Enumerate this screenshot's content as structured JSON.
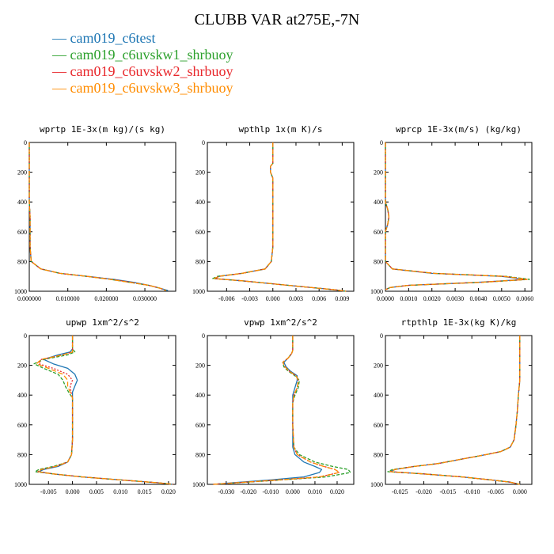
{
  "title": "CLUBB VAR at275E,-7N",
  "legend": [
    {
      "name": "cam019_c6test",
      "color": "#1f77b4",
      "dash": ""
    },
    {
      "name": "cam019_c6uvskw1_shrbuoy",
      "color": "#2ca02c",
      "dash": "4,2"
    },
    {
      "name": "cam019_c6uvskw2_shrbuoy",
      "color": "#e8262a",
      "dash": "2,2"
    },
    {
      "name": "cam019_c6uvskw3_shrbuoy",
      "color": "#ff8c00",
      "dash": "6,3"
    }
  ],
  "chart_data": [
    {
      "type": "line",
      "title": "wprtp  1E-3x(m kg)/(s kg)",
      "xlim": [
        0,
        0.038
      ],
      "ylim": [
        0,
        1000
      ],
      "y_inverted": true,
      "xticks": [
        0.0,
        0.01,
        0.02,
        0.03
      ],
      "xtick_labels": [
        "0.000000",
        "0.010000",
        "0.020000",
        "0.030000"
      ],
      "yticks": [
        0,
        200,
        400,
        600,
        800,
        1000
      ],
      "ytick_labels": [
        "0",
        "200",
        "400",
        "600",
        "800",
        "1000"
      ],
      "y": [
        0,
        100,
        200,
        300,
        400,
        500,
        600,
        700,
        800,
        850,
        880,
        900,
        920,
        940,
        960,
        980,
        995
      ],
      "series": [
        {
          "name": "cam019_c6test",
          "values": [
            0,
            0,
            0,
            0,
            0,
            0.0002,
            0.0002,
            0.0002,
            0.0005,
            0.003,
            0.008,
            0.015,
            0.022,
            0.027,
            0.031,
            0.034,
            0.036
          ]
        },
        {
          "name": "cam019_c6uvskw1_shrbuoy",
          "values": [
            0,
            0,
            0,
            0,
            0,
            0.0002,
            0.0002,
            0.0002,
            0.0005,
            0.003,
            0.008,
            0.015,
            0.021,
            0.026,
            0.031,
            0.034,
            0.0355
          ]
        },
        {
          "name": "cam019_c6uvskw2_shrbuoy",
          "values": [
            0,
            0,
            0,
            0,
            0,
            0.0002,
            0.0002,
            0.0002,
            0.0005,
            0.003,
            0.008,
            0.015,
            0.0215,
            0.0265,
            0.031,
            0.034,
            0.0355
          ]
        },
        {
          "name": "cam019_c6uvskw3_shrbuoy",
          "values": [
            0,
            0,
            0,
            0,
            0,
            0.0002,
            0.0002,
            0.0002,
            0.0005,
            0.003,
            0.008,
            0.015,
            0.021,
            0.026,
            0.031,
            0.034,
            0.0355
          ]
        }
      ]
    },
    {
      "type": "line",
      "title": "wpthlp  1x(m K)/s",
      "xlim": [
        -0.0085,
        0.0105
      ],
      "ylim": [
        0,
        1000
      ],
      "y_inverted": true,
      "xticks": [
        -0.006,
        -0.003,
        0.0,
        0.003,
        0.006,
        0.009
      ],
      "xtick_labels": [
        "-0.006",
        "-0.003",
        "0.000",
        "0.003",
        "0.006",
        "0.009"
      ],
      "yticks": [
        0,
        200,
        400,
        600,
        800,
        1000
      ],
      "ytick_labels": [
        "0",
        "200",
        "400",
        "600",
        "800",
        "1000"
      ],
      "y": [
        0,
        100,
        140,
        160,
        200,
        240,
        300,
        500,
        700,
        800,
        850,
        880,
        900,
        915,
        930,
        950,
        970,
        990,
        1000
      ],
      "series": [
        {
          "name": "cam019_c6test",
          "values": [
            0,
            0,
            0,
            -0.0003,
            -0.0003,
            0,
            0,
            0,
            0,
            -0.0002,
            -0.001,
            -0.004,
            -0.007,
            -0.0075,
            -0.004,
            0,
            0.004,
            0.008,
            0.0095
          ]
        },
        {
          "name": "cam019_c6uvskw1_shrbuoy",
          "values": [
            0,
            0,
            0,
            -0.0003,
            -0.0003,
            0,
            0,
            0,
            0,
            -0.0002,
            -0.001,
            -0.004,
            -0.0072,
            -0.0078,
            -0.004,
            0,
            0.004,
            0.008,
            0.0095
          ]
        },
        {
          "name": "cam019_c6uvskw2_shrbuoy",
          "values": [
            0,
            0,
            0,
            -0.0003,
            -0.0003,
            0,
            0,
            0,
            0,
            -0.0002,
            -0.001,
            -0.004,
            -0.007,
            -0.0076,
            -0.004,
            0,
            0.004,
            0.008,
            0.0095
          ]
        },
        {
          "name": "cam019_c6uvskw3_shrbuoy",
          "values": [
            0,
            0,
            0,
            -0.0003,
            -0.0003,
            0,
            0,
            0,
            0,
            -0.0002,
            -0.001,
            -0.004,
            -0.007,
            -0.0076,
            -0.004,
            0,
            0.004,
            0.008,
            0.0095
          ]
        }
      ]
    },
    {
      "type": "line",
      "title": "wprcp  1E-3x(m/s) (kg/kg)",
      "xlim": [
        0,
        0.0063
      ],
      "ylim": [
        0,
        1000
      ],
      "y_inverted": true,
      "xticks": [
        0.0,
        0.001,
        0.002,
        0.003,
        0.004,
        0.005,
        0.006
      ],
      "xtick_labels": [
        "0.0000",
        "0.0010",
        "0.0020",
        "0.0030",
        "0.0040",
        "0.0050",
        "0.0060"
      ],
      "yticks": [
        0,
        200,
        400,
        600,
        800,
        1000
      ],
      "ytick_labels": [
        "0",
        "200",
        "400",
        "600",
        "800",
        "1000"
      ],
      "y": [
        0,
        400,
        450,
        500,
        550,
        600,
        800,
        850,
        880,
        900,
        920,
        940,
        960,
        975,
        990
      ],
      "series": [
        {
          "name": "cam019_c6test",
          "values": [
            0,
            0,
            0.0001,
            0.00015,
            0.0001,
            0,
            0,
            0.0003,
            0.002,
            0.005,
            0.006,
            0.004,
            0.001,
            0.0002,
            0
          ]
        },
        {
          "name": "cam019_c6uvskw1_shrbuoy",
          "values": [
            0,
            0,
            0.0001,
            0.00015,
            0.0001,
            0,
            0,
            0.0003,
            0.0021,
            0.0052,
            0.0062,
            0.0042,
            0.001,
            0.0002,
            0
          ]
        },
        {
          "name": "cam019_c6uvskw2_shrbuoy",
          "values": [
            0,
            0,
            0.0001,
            0.00015,
            0.0001,
            0,
            0,
            0.0003,
            0.0021,
            0.0051,
            0.0061,
            0.0041,
            0.001,
            0.0002,
            0
          ]
        },
        {
          "name": "cam019_c6uvskw3_shrbuoy",
          "values": [
            0,
            0,
            0.0001,
            0.00015,
            0.0001,
            0,
            0,
            0.0003,
            0.0021,
            0.0051,
            0.0061,
            0.0041,
            0.001,
            0.0002,
            0
          ]
        }
      ]
    },
    {
      "type": "line",
      "title": "upwp  1xm^2/s^2",
      "xlim": [
        -0.009,
        0.0215
      ],
      "ylim": [
        0,
        1000
      ],
      "y_inverted": true,
      "xticks": [
        -0.005,
        0.0,
        0.005,
        0.01,
        0.015,
        0.02
      ],
      "xtick_labels": [
        "-0.005",
        "0.000",
        "0.005",
        "0.010",
        "0.015",
        "0.020"
      ],
      "yticks": [
        0,
        200,
        400,
        600,
        800,
        1000
      ],
      "ytick_labels": [
        "0",
        "200",
        "400",
        "600",
        "800",
        "1000"
      ],
      "y": [
        0,
        90,
        110,
        130,
        160,
        190,
        220,
        260,
        300,
        340,
        380,
        420,
        500,
        700,
        800,
        850,
        880,
        900,
        915,
        930,
        950,
        970,
        990,
        1000
      ],
      "series": [
        {
          "name": "cam019_c6test",
          "values": [
            0,
            0,
            -0.0005,
            -0.003,
            -0.006,
            -0.004,
            -0.001,
            0.0005,
            0.001,
            0.0005,
            0,
            0,
            0,
            0,
            -0.0002,
            -0.001,
            -0.003,
            -0.006,
            -0.007,
            -0.004,
            0.002,
            0.01,
            0.018,
            0.021
          ]
        },
        {
          "name": "cam019_c6uvskw1_shrbuoy",
          "values": [
            0,
            0,
            0.0005,
            -0.001,
            -0.006,
            -0.008,
            -0.006,
            -0.003,
            -0.002,
            -0.0015,
            -0.0008,
            0,
            0,
            0,
            -0.0002,
            -0.001,
            -0.004,
            -0.007,
            -0.0078,
            -0.004,
            0.002,
            0.01,
            0.018,
            0.021
          ]
        },
        {
          "name": "cam019_c6uvskw2_shrbuoy",
          "values": [
            0,
            0,
            0,
            -0.002,
            -0.0065,
            -0.007,
            -0.004,
            -0.001,
            0,
            -0.0005,
            -0.0003,
            0,
            0,
            0,
            -0.0002,
            -0.001,
            -0.0035,
            -0.0065,
            -0.0072,
            -0.004,
            0.002,
            0.01,
            0.018,
            0.021
          ]
        },
        {
          "name": "cam019_c6uvskw3_shrbuoy",
          "values": [
            0,
            0,
            0,
            -0.002,
            -0.0065,
            -0.0075,
            -0.005,
            -0.002,
            -0.001,
            -0.001,
            -0.0005,
            0,
            0,
            0,
            -0.0002,
            -0.001,
            -0.0035,
            -0.0065,
            -0.0072,
            -0.004,
            0.002,
            0.01,
            0.018,
            0.021
          ]
        }
      ]
    },
    {
      "type": "line",
      "title": "vpwp  1xm^2/s^2",
      "xlim": [
        -0.0385,
        0.0275
      ],
      "ylim": [
        0,
        1000
      ],
      "y_inverted": true,
      "xticks": [
        -0.03,
        -0.02,
        -0.01,
        0.0,
        0.01,
        0.02
      ],
      "xtick_labels": [
        "-0.030",
        "-0.020",
        "-0.010",
        "0.000",
        "0.010",
        "0.020"
      ],
      "yticks": [
        0,
        200,
        400,
        600,
        800,
        1000
      ],
      "ytick_labels": [
        "0",
        "200",
        "400",
        "600",
        "800",
        "1000"
      ],
      "y": [
        0,
        100,
        120,
        150,
        180,
        210,
        240,
        270,
        300,
        350,
        400,
        450,
        600,
        750,
        800,
        850,
        880,
        900,
        920,
        950,
        970,
        990,
        1000
      ],
      "series": [
        {
          "name": "cam019_c6test",
          "values": [
            0,
            0,
            -0.0005,
            -0.002,
            -0.004,
            -0.003,
            -0.001,
            0.002,
            0.002,
            0.001,
            0,
            0,
            0,
            0,
            0.001,
            0.005,
            0.01,
            0.013,
            0.012,
            0.005,
            -0.01,
            -0.028,
            -0.036
          ]
        },
        {
          "name": "cam019_c6uvskw1_shrbuoy",
          "values": [
            0,
            0,
            -0.0005,
            -0.002,
            -0.0045,
            -0.004,
            -0.002,
            0.001,
            0.003,
            0.0025,
            0.001,
            0,
            0,
            0.0005,
            0.003,
            0.01,
            0.018,
            0.025,
            0.026,
            0.015,
            -0.005,
            -0.025,
            -0.036
          ]
        },
        {
          "name": "cam019_c6uvskw2_shrbuoy",
          "values": [
            0,
            0,
            -0.0005,
            -0.002,
            -0.0045,
            -0.0035,
            -0.0015,
            0.0015,
            0.0025,
            0.002,
            0.0005,
            0,
            0,
            0.0005,
            0.002,
            0.008,
            0.014,
            0.019,
            0.021,
            0.012,
            -0.006,
            -0.026,
            -0.036
          ]
        },
        {
          "name": "cam019_c6uvskw3_shrbuoy",
          "values": [
            0,
            0,
            -0.0005,
            -0.002,
            -0.0045,
            -0.0035,
            -0.0015,
            0.0015,
            0.0025,
            0.002,
            0.0005,
            0,
            0,
            0.0005,
            0.002,
            0.008,
            0.014,
            0.019,
            0.021,
            0.012,
            -0.006,
            -0.026,
            -0.036
          ]
        }
      ]
    },
    {
      "type": "line",
      "title": "rtpthlp  1E-3x(kg K)/kg",
      "xlim": [
        -0.028,
        0.0025
      ],
      "ylim": [
        0,
        1000
      ],
      "y_inverted": true,
      "xticks": [
        -0.025,
        -0.02,
        -0.015,
        -0.01,
        -0.005,
        0.0
      ],
      "xtick_labels": [
        "-0.025",
        "-0.020",
        "-0.015",
        "-0.010",
        "-0.005",
        "0.000"
      ],
      "yticks": [
        0,
        200,
        400,
        600,
        800,
        1000
      ],
      "ytick_labels": [
        "0",
        "200",
        "400",
        "600",
        "800",
        "1000"
      ],
      "y": [
        0,
        300,
        400,
        500,
        600,
        700,
        750,
        780,
        800,
        830,
        860,
        880,
        900,
        915,
        930,
        950,
        970,
        985,
        1000
      ],
      "series": [
        {
          "name": "cam019_c6test",
          "values": [
            0,
            0,
            -0.0003,
            -0.0005,
            -0.0008,
            -0.0012,
            -0.002,
            -0.004,
            -0.007,
            -0.012,
            -0.017,
            -0.022,
            -0.026,
            -0.027,
            -0.02,
            -0.012,
            -0.006,
            -0.002,
            0
          ]
        },
        {
          "name": "cam019_c6uvskw1_shrbuoy",
          "values": [
            0,
            0,
            -0.0003,
            -0.0005,
            -0.0008,
            -0.0012,
            -0.002,
            -0.004,
            -0.007,
            -0.012,
            -0.017,
            -0.022,
            -0.0265,
            -0.0275,
            -0.02,
            -0.012,
            -0.006,
            -0.002,
            0
          ]
        },
        {
          "name": "cam019_c6uvskw2_shrbuoy",
          "values": [
            0,
            0,
            -0.0003,
            -0.0005,
            -0.0008,
            -0.0012,
            -0.002,
            -0.004,
            -0.007,
            -0.012,
            -0.017,
            -0.022,
            -0.026,
            -0.027,
            -0.02,
            -0.012,
            -0.006,
            -0.002,
            0
          ]
        },
        {
          "name": "cam019_c6uvskw3_shrbuoy",
          "values": [
            0,
            0,
            -0.0003,
            -0.0005,
            -0.0008,
            -0.0012,
            -0.002,
            -0.004,
            -0.007,
            -0.012,
            -0.017,
            -0.022,
            -0.026,
            -0.027,
            -0.02,
            -0.012,
            -0.006,
            -0.002,
            0
          ]
        }
      ]
    }
  ]
}
